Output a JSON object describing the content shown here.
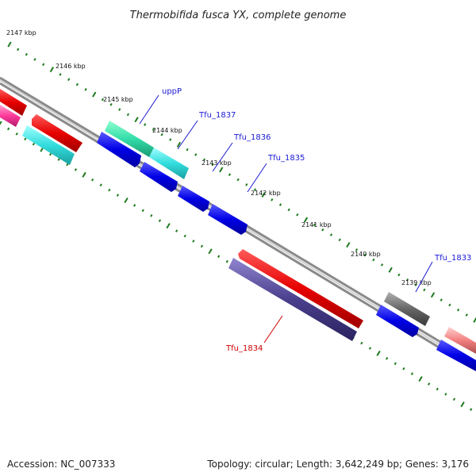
{
  "title": "Thermobifida fusca YX, complete genome",
  "footer": {
    "accession": "Accession: NC_007333",
    "topology": "Topology: circular; Length: 3,642,249 bp; Genes: 3,176"
  },
  "kbp_ticks": [
    "2147 kbp",
    "2146 kbp",
    "2145 kbp",
    "2144 kbp",
    "2143 kbp",
    "2142 kbp",
    "2141 kbp",
    "2140 kbp",
    "2139 kbp"
  ],
  "gene_labels": [
    {
      "name": "uppP",
      "color": "#1a1ad4"
    },
    {
      "name": "Tfu_1837",
      "color": "#1a1ad4"
    },
    {
      "name": "Tfu_1836",
      "color": "#1a1ad4"
    },
    {
      "name": "Tfu_1835",
      "color": "#1a1ad4"
    },
    {
      "name": "Tfu_1833",
      "color": "#1a1ad4"
    },
    {
      "name": "Tfu_1834",
      "color": "#cc0000"
    }
  ],
  "colors": {
    "backbone": "#8a8a8a",
    "tick": "#1e7a1e",
    "cds_forward": "#0000e6",
    "cds_reverse": "#e60000",
    "cds_cyan": "#33dddd",
    "cds_green": "#33ddaa",
    "cds_purple": "#4a3f8c",
    "cds_gray": "#666666",
    "cds_pink": "#ff4aa8",
    "cds_salmon": "#f28080"
  }
}
